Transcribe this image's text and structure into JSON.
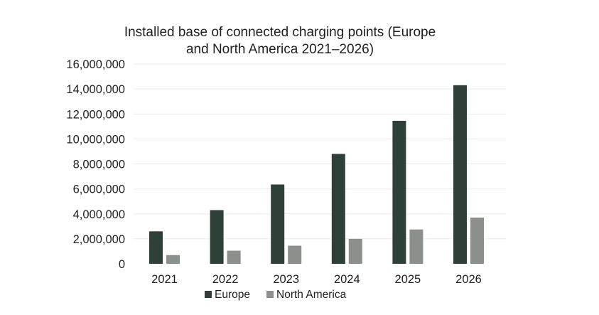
{
  "chart_data": {
    "type": "bar",
    "title_lines": [
      "Installed base of connected charging points (Europe",
      "and North America 2021–2026)"
    ],
    "categories": [
      "2021",
      "2022",
      "2023",
      "2024",
      "2025",
      "2026"
    ],
    "series": [
      {
        "name": "Europe",
        "color": "#2f4039",
        "values": [
          2600000,
          4300000,
          6350000,
          8800000,
          11450000,
          14300000
        ]
      },
      {
        "name": "North America",
        "color": "#8c908d",
        "values": [
          700000,
          1050000,
          1450000,
          2000000,
          2750000,
          3700000
        ]
      }
    ],
    "ylim": [
      0,
      16000000
    ],
    "yticks": [
      0,
      2000000,
      4000000,
      6000000,
      8000000,
      10000000,
      12000000,
      14000000,
      16000000
    ],
    "ytick_labels": [
      "0",
      "2,000,000",
      "4,000,000",
      "6,000,000",
      "8,000,000",
      "10,000,000",
      "12,000,000",
      "14,000,000",
      "16,000,000"
    ],
    "xlabel": "",
    "ylabel": "",
    "grid": true,
    "legend_position": "bottom"
  }
}
